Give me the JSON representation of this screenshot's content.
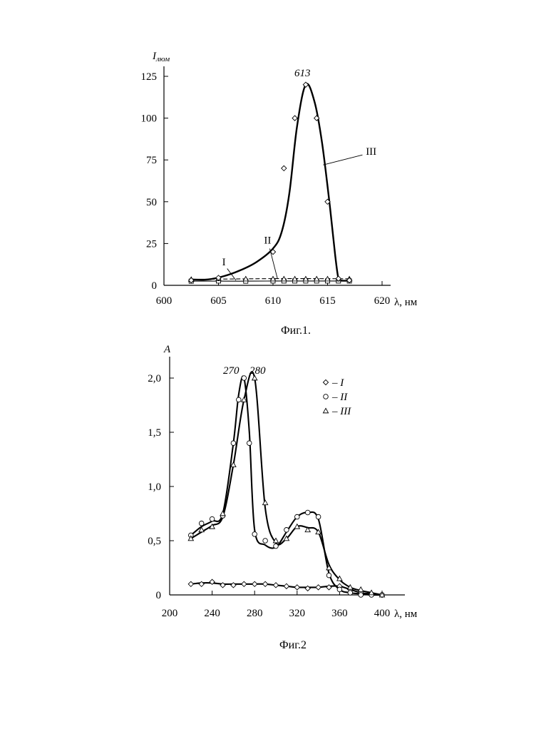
{
  "chart_data": [
    {
      "type": "line",
      "caption": "Фиг.1.",
      "xlabel": "λ, нм",
      "ylabel": "I",
      "ylabel_sub": "люм",
      "xlim": [
        600,
        625
      ],
      "ylim": [
        0,
        125
      ],
      "xticks": [
        600,
        605,
        610,
        615,
        620
      ],
      "yticks": [
        0,
        25,
        50,
        75,
        100,
        125
      ],
      "peak_annotation": {
        "text": "613",
        "x": 613,
        "y": 120
      },
      "series": [
        {
          "name": "I",
          "style": "solid",
          "marker": "square",
          "curve": [
            [
              602.5,
              2.5
            ],
            [
              605,
              2.5
            ],
            [
              608,
              2.5
            ],
            [
              611,
              2.6
            ],
            [
              614,
              2.6
            ],
            [
              617,
              2.6
            ]
          ],
          "points": [
            [
              602.5,
              2.5
            ],
            [
              605,
              2.6
            ],
            [
              607.5,
              2.5
            ],
            [
              610,
              2.6
            ],
            [
              611,
              2.6
            ],
            [
              612,
              2.6
            ],
            [
              613,
              2.6
            ],
            [
              614,
              2.6
            ],
            [
              615,
              2.6
            ],
            [
              616,
              2.6
            ],
            [
              617,
              2.6
            ]
          ],
          "label_at": [
            605.5,
            12
          ]
        },
        {
          "name": "II",
          "style": "dashed",
          "marker": "triangle",
          "curve": [
            [
              602.5,
              3.5
            ],
            [
              605,
              3.7
            ],
            [
              610,
              4.0
            ],
            [
              614,
              4.0
            ],
            [
              617,
              3.9
            ]
          ],
          "points": [
            [
              602.5,
              3.5
            ],
            [
              605,
              4.0
            ],
            [
              607.5,
              3.8
            ],
            [
              610,
              3.8
            ],
            [
              611,
              3.8
            ],
            [
              612,
              3.8
            ],
            [
              613,
              3.8
            ],
            [
              614,
              3.8
            ],
            [
              615,
              3.8
            ],
            [
              616,
              3.8
            ],
            [
              617,
              3.8
            ]
          ],
          "label_at": [
            609.5,
            25
          ]
        },
        {
          "name": "III",
          "style": "solid",
          "marker": "diamond",
          "curve": [
            [
              602.5,
              3.5
            ],
            [
              604,
              3.5
            ],
            [
              605.5,
              5.5
            ],
            [
              607,
              9
            ],
            [
              608.5,
              14
            ],
            [
              610,
              22
            ],
            [
              610.8,
              32
            ],
            [
              611.5,
              55
            ],
            [
              612.2,
              95
            ],
            [
              613,
              120
            ],
            [
              613.8,
              110
            ],
            [
              614.5,
              85
            ],
            [
              615.2,
              48
            ],
            [
              615.7,
              18
            ],
            [
              616,
              4
            ],
            [
              616.3,
              2.8
            ],
            [
              617,
              2.8
            ]
          ],
          "points": [
            [
              602.5,
              3
            ],
            [
              605,
              4.5
            ],
            [
              610,
              20
            ],
            [
              611,
              70
            ],
            [
              612,
              100
            ],
            [
              613,
              120
            ],
            [
              614,
              100
            ],
            [
              615,
              50
            ],
            [
              616,
              4
            ],
            [
              617,
              3
            ]
          ],
          "label_at": [
            619,
            78
          ]
        }
      ]
    },
    {
      "type": "line",
      "caption": "Фиг.2",
      "xlabel": "λ, нм",
      "ylabel": "A",
      "xlim": [
        200,
        420
      ],
      "ylim": [
        0,
        2.2
      ],
      "xticks": [
        200,
        240,
        280,
        320,
        360,
        400
      ],
      "yticks": [
        0,
        0.5,
        1.0,
        1.5,
        2.0
      ],
      "ytick_labels": [
        "0",
        "0,5",
        "1,0",
        "1,5",
        "2,0"
      ],
      "peak_annotations": [
        {
          "text": "270",
          "x": 270,
          "y": 2.0
        },
        {
          "text": "280",
          "x": 280,
          "y": 2.0
        }
      ],
      "legend": {
        "position": "top-right",
        "entries": [
          {
            "marker": "diamond",
            "label": "– I"
          },
          {
            "marker": "circle",
            "label": "– II"
          },
          {
            "marker": "triangle",
            "label": "– III"
          }
        ]
      },
      "series": [
        {
          "name": "I",
          "marker": "diamond",
          "x": [
            220,
            230,
            240,
            250,
            260,
            270,
            280,
            290,
            300,
            310,
            320,
            330,
            340,
            350,
            360,
            370,
            380,
            390,
            400
          ],
          "points_y": [
            0.1,
            0.1,
            0.12,
            0.09,
            0.09,
            0.1,
            0.1,
            0.1,
            0.09,
            0.08,
            0.07,
            0.06,
            0.07,
            0.07,
            0.08,
            0.05,
            0.02,
            0.01,
            0.0
          ],
          "curve_y": [
            0.1,
            0.11,
            0.11,
            0.1,
            0.1,
            0.1,
            0.1,
            0.1,
            0.09,
            0.08,
            0.07,
            0.07,
            0.07,
            0.08,
            0.08,
            0.05,
            0.02,
            0.01,
            0.0
          ]
        },
        {
          "name": "II",
          "marker": "circle",
          "x": [
            220,
            230,
            240,
            250,
            260,
            265,
            270,
            275,
            280,
            290,
            300,
            310,
            320,
            330,
            340,
            350,
            360,
            370,
            380,
            390,
            400
          ],
          "points_y": [
            0.55,
            0.66,
            0.7,
            0.73,
            1.4,
            1.8,
            2.0,
            1.4,
            0.56,
            0.5,
            0.45,
            0.6,
            0.72,
            0.76,
            0.72,
            0.18,
            0.05,
            0.02,
            0.0,
            0.0,
            0.0
          ],
          "curve_y": [
            0.55,
            0.63,
            0.68,
            0.75,
            1.4,
            1.85,
            2.0,
            1.5,
            0.6,
            0.46,
            0.44,
            0.58,
            0.72,
            0.76,
            0.7,
            0.2,
            0.05,
            0.02,
            0.01,
            0.0,
            0.0
          ]
        },
        {
          "name": "III",
          "marker": "triangle",
          "x": [
            220,
            230,
            240,
            250,
            260,
            270,
            280,
            290,
            300,
            310,
            320,
            330,
            340,
            350,
            360,
            370,
            380,
            390,
            400
          ],
          "points_y": [
            0.52,
            0.6,
            0.63,
            0.75,
            1.2,
            1.8,
            2.0,
            0.85,
            0.5,
            0.52,
            0.63,
            0.6,
            0.58,
            0.25,
            0.15,
            0.07,
            0.05,
            0.02,
            0.0
          ],
          "curve_y": [
            0.52,
            0.58,
            0.64,
            0.72,
            1.2,
            1.8,
            2.0,
            0.8,
            0.48,
            0.52,
            0.63,
            0.62,
            0.58,
            0.28,
            0.14,
            0.07,
            0.04,
            0.02,
            0.0
          ]
        }
      ]
    }
  ]
}
